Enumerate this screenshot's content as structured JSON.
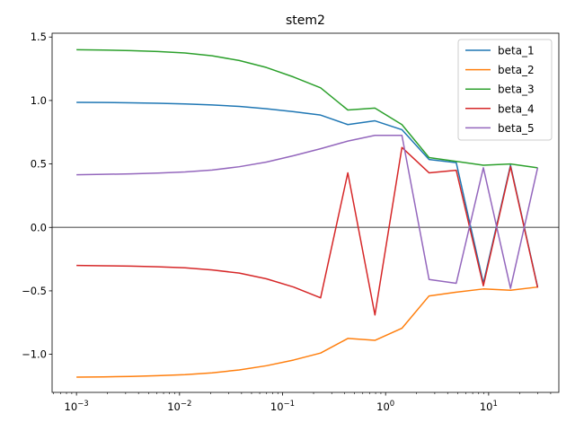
{
  "chart_data": {
    "type": "line",
    "title": "stem2",
    "xlabel": "",
    "ylabel": "",
    "xscale": "log",
    "xlim": [
      0.00058,
      48
    ],
    "ylim": [
      -1.3,
      1.53
    ],
    "xticks": [
      {
        "value": 0.001,
        "label": "10",
        "exp": "−3"
      },
      {
        "value": 0.01,
        "label": "10",
        "exp": "−2"
      },
      {
        "value": 0.1,
        "label": "10",
        "exp": "−1"
      },
      {
        "value": 1,
        "label": "10",
        "exp": "0"
      },
      {
        "value": 10,
        "label": "10",
        "exp": "1"
      }
    ],
    "yticks": [
      {
        "value": -1.0,
        "label": "−1.0"
      },
      {
        "value": -0.5,
        "label": "−0.5"
      },
      {
        "value": 0.0,
        "label": "0.0"
      },
      {
        "value": 0.5,
        "label": "0.5"
      },
      {
        "value": 1.0,
        "label": "1.0"
      },
      {
        "value": 1.5,
        "label": "1.5"
      }
    ],
    "hline": {
      "y": 0,
      "color": "#808080"
    },
    "legend_position": "top-right",
    "x": [
      0.001,
      0.00183,
      0.00336,
      0.00616,
      0.0113,
      0.0207,
      0.038,
      0.0697,
      0.128,
      0.234,
      0.43,
      0.788,
      1.44,
      2.64,
      4.85,
      8.89,
      16.3,
      29.9
    ],
    "series": [
      {
        "name": "beta_1",
        "color": "#1f77b4",
        "values": [
          0.985,
          0.984,
          0.982,
          0.978,
          0.973,
          0.965,
          0.953,
          0.935,
          0.912,
          0.885,
          0.81,
          0.84,
          0.77,
          0.535,
          0.51,
          -0.44,
          0.49,
          -0.47
        ]
      },
      {
        "name": "beta_2",
        "color": "#ff7f0e",
        "values": [
          -1.18,
          -1.178,
          -1.174,
          -1.168,
          -1.16,
          -1.146,
          -1.123,
          -1.09,
          -1.045,
          -0.99,
          -0.875,
          -0.89,
          -0.795,
          -0.54,
          -0.51,
          -0.485,
          -0.495,
          -0.47
        ]
      },
      {
        "name": "beta_3",
        "color": "#2ca02c",
        "values": [
          1.4,
          1.397,
          1.393,
          1.386,
          1.374,
          1.352,
          1.315,
          1.26,
          1.185,
          1.1,
          0.925,
          0.94,
          0.81,
          0.55,
          0.52,
          0.49,
          0.5,
          0.47
        ]
      },
      {
        "name": "beta_4",
        "color": "#d62728",
        "values": [
          -0.3,
          -0.302,
          -0.305,
          -0.31,
          -0.318,
          -0.335,
          -0.36,
          -0.405,
          -0.47,
          -0.555,
          0.43,
          -0.69,
          0.63,
          0.43,
          0.45,
          -0.46,
          0.48,
          -0.475
        ]
      },
      {
        "name": "beta_5",
        "color": "#9467bd",
        "values": [
          0.415,
          0.418,
          0.422,
          0.428,
          0.437,
          0.452,
          0.478,
          0.515,
          0.565,
          0.62,
          0.68,
          0.725,
          0.725,
          -0.41,
          -0.44,
          0.47,
          -0.48,
          0.47
        ]
      }
    ]
  }
}
